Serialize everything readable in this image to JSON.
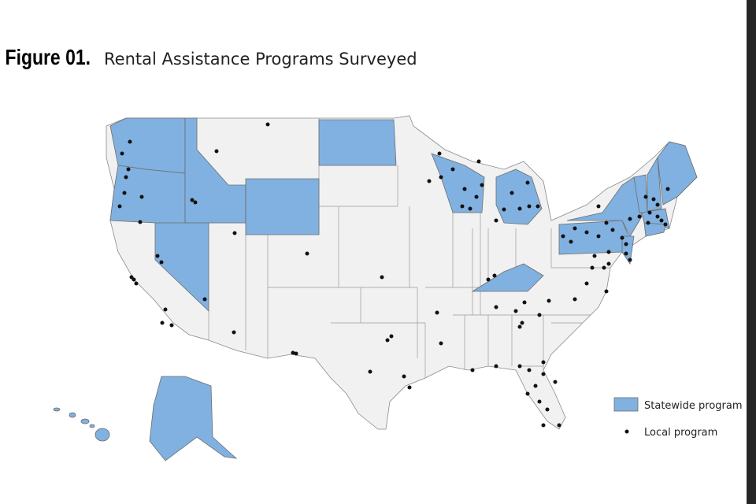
{
  "header": {
    "figure_label": "Figure 01.",
    "title": "Rental Assistance Programs Surveyed"
  },
  "legend": {
    "items": [
      {
        "label": "Statewide program"
      },
      {
        "label": "Local program"
      }
    ]
  }
}
